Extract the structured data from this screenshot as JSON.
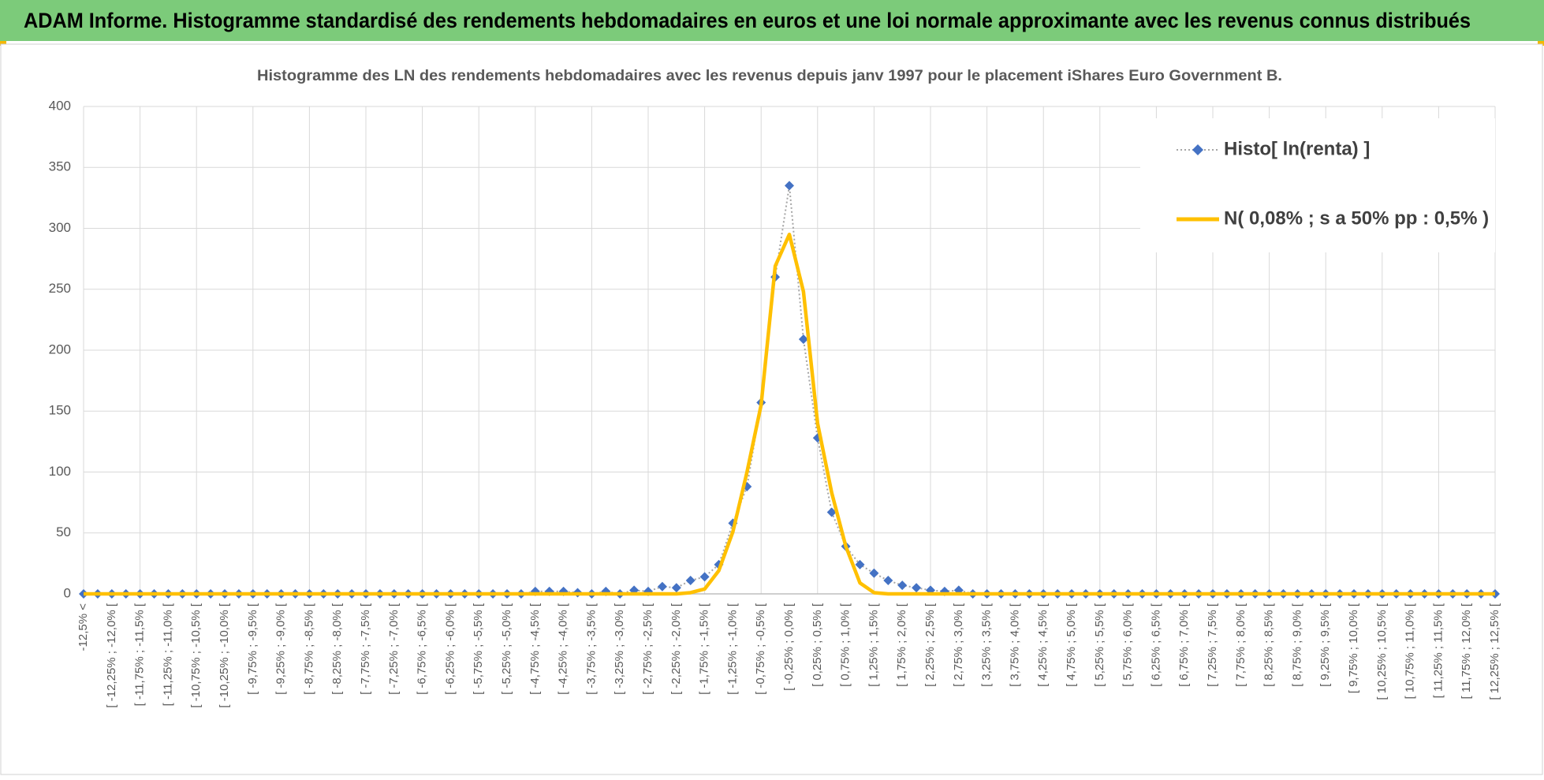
{
  "header": {
    "title": "ADAM Informe. Histogramme standardisé des rendements hebdomadaires en euros et une loi normale approximante avec les revenus connus distribués"
  },
  "chart_data": {
    "type": "line",
    "title": "Histogramme des LN des rendements hebdomadaires avec les revenus depuis janv 1997 pour le placement iShares Euro Government B.",
    "categories": [
      "-12,5% <",
      null,
      "[ -12,25% ; -12,0% [",
      null,
      "[ -11,75% ; -11,5% [",
      null,
      "[ -11,25% ; -11,0% [",
      null,
      "[ -10,75% ; -10,5% [",
      null,
      "[ -10,25% ; -10,0% [",
      null,
      "[ -9,75% ; -9,5% [",
      null,
      "[ -9,25% ; -9,0% [",
      null,
      "[ -8,75% ; -8,5% [",
      null,
      "[ -8,25% ; -8,0% [",
      null,
      "[ -7,75% ; -7,5% [",
      null,
      "[ -7,25% ; -7,0% [",
      null,
      "[ -6,75% ; -6,5% [",
      null,
      "[ -6,25% ; -6,0% [",
      null,
      "[ -5,75% ; -5,5% [",
      null,
      "[ -5,25% ; -5,0% [",
      null,
      "[ -4,75% ; -4,5% [",
      null,
      "[ -4,25% ; -4,0% [",
      null,
      "[ -3,75% ; -3,5% [",
      null,
      "[ -3,25% ; -3,0% [",
      null,
      "[ -2,75% ; -2,5% [",
      null,
      "[ -2,25% ; -2,0% [",
      null,
      "[ -1,75% ; -1,5% [",
      null,
      "[ -1,25% ; -1,0% [",
      null,
      "[ -0,75% ; -0,5% [",
      null,
      "[ -0,25% ; 0,0% [",
      null,
      "[ 0,25% ; 0,5% [",
      null,
      "[ 0,75% ; 1,0% [",
      null,
      "[ 1,25% ; 1,5% [",
      null,
      "[ 1,75% ; 2,0% [",
      null,
      "[ 2,25% ; 2,5% [",
      null,
      "[ 2,75% ; 3,0% [",
      null,
      "[ 3,25% ; 3,5% [",
      null,
      "[ 3,75% ; 4,0% [",
      null,
      "[ 4,25% ; 4,5% [",
      null,
      "[ 4,75% ; 5,0% [",
      null,
      "[ 5,25% ; 5,5% [",
      null,
      "[ 5,75% ; 6,0% [",
      null,
      "[ 6,25% ; 6,5% [",
      null,
      "[ 6,75% ; 7,0% [",
      null,
      "[ 7,25% ; 7,5% [",
      null,
      "[ 7,75% ; 8,0% [",
      null,
      "[ 8,25% ; 8,5% [",
      null,
      "[ 8,75% ; 9,0% [",
      null,
      "[ 9,25% ; 9,5% [",
      null,
      "[ 9,75% ; 10,0% [",
      null,
      "[ 10,25% ; 10,5% [",
      null,
      "[ 10,75% ; 11,0% [",
      null,
      "[ 11,25% ; 11,5% [",
      null,
      "[ 11,75% ; 12,0% [",
      null,
      "[ 12,25% ; 12,5% ["
    ],
    "series": [
      {
        "name": "Histo[ ln(renta) ]",
        "color": "#4472c4",
        "values": [
          0,
          0,
          0,
          0,
          0,
          0,
          0,
          0,
          0,
          0,
          0,
          0,
          0,
          0,
          0,
          0,
          0,
          0,
          0,
          0,
          0,
          0,
          0,
          0,
          0,
          0,
          0,
          0,
          0,
          0,
          0,
          0,
          2,
          2,
          2,
          1,
          0,
          2,
          0,
          3,
          2,
          6,
          5,
          11,
          14,
          24,
          58,
          88,
          157,
          260,
          335,
          209,
          128,
          67,
          39,
          24,
          17,
          11,
          7,
          5,
          3,
          2,
          3,
          0,
          0,
          0,
          0,
          0,
          0,
          0,
          0,
          0,
          0,
          0,
          0,
          0,
          0,
          0,
          0,
          0,
          0,
          0,
          0,
          0,
          0,
          0,
          0,
          0,
          0,
          0,
          0,
          0,
          0,
          0,
          0,
          0,
          0,
          0,
          0,
          0,
          0
        ]
      },
      {
        "name": "N( 0,08% ; s a 50% pp : 0,5% )",
        "color": "#ffc000",
        "values": [
          0,
          0,
          0,
          0,
          0,
          0,
          0,
          0,
          0,
          0,
          0,
          0,
          0,
          0,
          0,
          0,
          0,
          0,
          0,
          0,
          0,
          0,
          0,
          0,
          0,
          0,
          0,
          0,
          0,
          0,
          0,
          0,
          0,
          0,
          0,
          0,
          0,
          0,
          0,
          0,
          0,
          0,
          0,
          1,
          4,
          19,
          51,
          100,
          155,
          269,
          295,
          248,
          140,
          83,
          39,
          9,
          1,
          0,
          0,
          0,
          0,
          0,
          0,
          0,
          0,
          0,
          0,
          0,
          0,
          0,
          0,
          0,
          0,
          0,
          0,
          0,
          0,
          0,
          0,
          0,
          0,
          0,
          0,
          0,
          0,
          0,
          0,
          0,
          0,
          0,
          0,
          0,
          0,
          0,
          0,
          0,
          0,
          0,
          0,
          0,
          0
        ]
      }
    ],
    "ylim": [
      0,
      400
    ],
    "yticks": [
      0,
      50,
      100,
      150,
      200,
      250,
      300,
      350,
      400
    ],
    "grid": true,
    "legend": "upper right"
  }
}
